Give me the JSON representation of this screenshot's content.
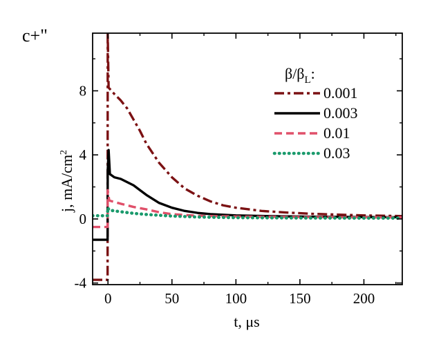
{
  "chart_data": {
    "type": "line",
    "corner_label": "c+\"",
    "xlabel": "t, μs",
    "ylabel": "j, mA/cm",
    "ylabel_superscript": "2",
    "xlim": [
      -12,
      230
    ],
    "ylim": [
      -4.1,
      11.6
    ],
    "xticks": [
      0,
      50,
      100,
      150,
      200
    ],
    "xtick_labels": [
      "0",
      "50",
      "100",
      "150",
      "200"
    ],
    "yticks": [
      -4,
      0,
      4,
      8
    ],
    "ytick_labels": [
      "-4",
      "0",
      "4",
      "8"
    ],
    "grid": false,
    "legend": {
      "title_prefix": "β/β",
      "title_subscript": "L",
      "title_suffix": ":",
      "placement": "top-right"
    },
    "series": [
      {
        "name": "0.001",
        "color": "#7b1113",
        "style": "dashdot",
        "points": [
          [
            -12,
            -3.8
          ],
          [
            -0.3,
            -3.8
          ],
          [
            -0.2,
            11.6
          ],
          [
            0.5,
            8.2
          ],
          [
            5,
            7.8
          ],
          [
            10,
            7.4
          ],
          [
            15,
            6.9
          ],
          [
            20,
            6.2
          ],
          [
            25,
            5.5
          ],
          [
            30,
            4.7
          ],
          [
            40,
            3.5
          ],
          [
            50,
            2.6
          ],
          [
            60,
            1.9
          ],
          [
            70,
            1.45
          ],
          [
            80,
            1.1
          ],
          [
            90,
            0.85
          ],
          [
            100,
            0.7
          ],
          [
            120,
            0.5
          ],
          [
            140,
            0.4
          ],
          [
            160,
            0.32
          ],
          [
            180,
            0.27
          ],
          [
            200,
            0.22
          ],
          [
            230,
            0.18
          ]
        ]
      },
      {
        "name": "0.003",
        "color": "#000000",
        "style": "solid",
        "points": [
          [
            -12,
            -1.3
          ],
          [
            -0.3,
            -1.3
          ],
          [
            -0.2,
            3.0
          ],
          [
            0.5,
            4.3
          ],
          [
            1.5,
            2.8
          ],
          [
            5,
            2.6
          ],
          [
            10,
            2.5
          ],
          [
            15,
            2.3
          ],
          [
            20,
            2.1
          ],
          [
            25,
            1.8
          ],
          [
            30,
            1.5
          ],
          [
            40,
            1.0
          ],
          [
            50,
            0.7
          ],
          [
            60,
            0.5
          ],
          [
            70,
            0.38
          ],
          [
            80,
            0.3
          ],
          [
            100,
            0.22
          ],
          [
            130,
            0.17
          ],
          [
            160,
            0.14
          ],
          [
            200,
            0.12
          ],
          [
            230,
            0.11
          ]
        ]
      },
      {
        "name": "0.01",
        "color": "#e0506a",
        "style": "dashed",
        "points": [
          [
            -12,
            -0.5
          ],
          [
            -0.3,
            -0.5
          ],
          [
            -0.2,
            1.8
          ],
          [
            1,
            1.15
          ],
          [
            10,
            0.95
          ],
          [
            20,
            0.75
          ],
          [
            30,
            0.6
          ],
          [
            40,
            0.42
          ],
          [
            50,
            0.3
          ],
          [
            70,
            0.2
          ],
          [
            100,
            0.15
          ],
          [
            150,
            0.12
          ],
          [
            200,
            0.1
          ],
          [
            230,
            0.1
          ]
        ]
      },
      {
        "name": "0.03",
        "color": "#1a9a6c",
        "style": "dotted",
        "points": [
          [
            -12,
            0.2
          ],
          [
            -0.3,
            0.2
          ],
          [
            -0.2,
            0.7
          ],
          [
            1,
            0.55
          ],
          [
            10,
            0.45
          ],
          [
            20,
            0.35
          ],
          [
            30,
            0.28
          ],
          [
            50,
            0.18
          ],
          [
            70,
            0.12
          ],
          [
            100,
            0.08
          ],
          [
            150,
            0.06
          ],
          [
            200,
            0.05
          ],
          [
            230,
            0.05
          ]
        ]
      }
    ]
  }
}
